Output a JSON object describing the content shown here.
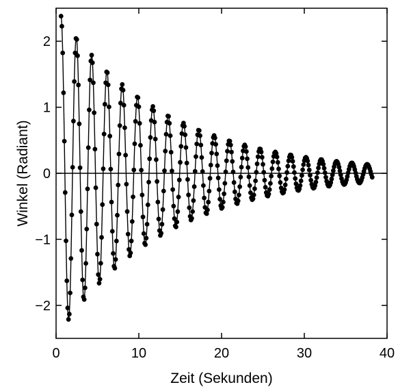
{
  "chart_data": {
    "type": "scatter",
    "title": "",
    "xlabel": "Zeit  (Sekunden)",
    "ylabel": "Winkel  (Radiant)",
    "xlim": [
      0,
      40
    ],
    "ylim": [
      -2.5,
      2.5
    ],
    "x_ticks": [
      0,
      10,
      20,
      30,
      40
    ],
    "x_tick_labels": [
      "0",
      "10",
      "20",
      "30",
      "40"
    ],
    "y_ticks": [
      2,
      1,
      0,
      -1,
      -2
    ],
    "y_tick_labels": [
      "2",
      "1",
      "0",
      "−1",
      "−2"
    ],
    "zero_line": true,
    "grid": false,
    "legend": "none",
    "marker_color": "#000000",
    "line_color": "#000000",
    "series": [
      {
        "style": "markers-with-line",
        "model": "damped cosine",
        "amplitude_initial": 2.38,
        "decay_rate": 0.077,
        "period": 1.85,
        "t_start": 0.6,
        "t_end": 38.3,
        "sample_interval": 0.1
      }
    ]
  }
}
